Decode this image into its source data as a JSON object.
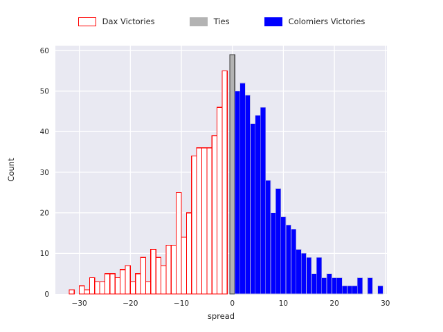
{
  "figure": {
    "background": "#ffffff",
    "plot_background": "#e9e9f2",
    "grid_color": "#ffffff",
    "text_color": "#262626"
  },
  "legend": {
    "items": [
      {
        "label": "Dax Victories",
        "swatch_fill": "#ffffff",
        "swatch_border": "#ff0000"
      },
      {
        "label": "Ties",
        "swatch_fill": "#b3b3b3",
        "swatch_border": "#b3b3b3"
      },
      {
        "label": "Colomiers Victories",
        "swatch_fill": "#0000ff",
        "swatch_border": "#0000ff"
      }
    ]
  },
  "chart_data": {
    "type": "bar",
    "subtype": "histogram",
    "title": "",
    "xlabel": "spread",
    "ylabel": "Count",
    "xlim": [
      -34.7,
      30.3
    ],
    "ylim": [
      0,
      61.2
    ],
    "x_ticks": [
      -30,
      -20,
      -10,
      0,
      10,
      20,
      30
    ],
    "y_ticks": [
      0,
      10,
      20,
      30,
      40,
      50,
      60
    ],
    "grid": true,
    "legend_position": "top",
    "bin_width": 1,
    "series": [
      {
        "name": "Dax Victories",
        "style": "outline",
        "edge_color": "#ff0000",
        "fill_color": "#ffffff",
        "bin_centers": [
          -31.5,
          -30.5,
          -29.5,
          -28.5,
          -27.5,
          -26.5,
          -25.5,
          -24.5,
          -23.5,
          -22.5,
          -21.5,
          -20.5,
          -19.5,
          -18.5,
          -17.5,
          -16.5,
          -15.5,
          -14.5,
          -13.5,
          -12.5,
          -11.5,
          -10.5,
          -9.5,
          -8.5,
          -7.5,
          -6.5,
          -5.5,
          -4.5,
          -3.5,
          -2.5,
          -1.5
        ],
        "counts": [
          1,
          0,
          2,
          1,
          4,
          3,
          3,
          5,
          5,
          4,
          6,
          7,
          3,
          5,
          9,
          3,
          11,
          9,
          7,
          12,
          12,
          25,
          14,
          20,
          34,
          36,
          36,
          36,
          39,
          46,
          55
        ]
      },
      {
        "name": "Ties",
        "style": "filled",
        "edge_color": "#3a3a3a",
        "fill_color": "#b3b3b3",
        "bin_centers": [
          0
        ],
        "counts": [
          59
        ]
      },
      {
        "name": "Colomiers Victories",
        "style": "filled",
        "edge_color": "#b9b9dc",
        "fill_color": "#0000ff",
        "bin_centers": [
          1,
          2,
          3,
          4,
          5,
          6,
          7,
          8,
          9,
          10,
          11,
          12,
          13,
          14,
          15,
          16,
          17,
          18,
          19,
          20,
          21,
          22,
          23,
          24,
          25,
          26,
          27,
          28,
          29
        ],
        "counts": [
          50,
          52,
          49,
          42,
          44,
          46,
          28,
          20,
          26,
          19,
          17,
          16,
          11,
          10,
          9,
          5,
          9,
          4,
          5,
          4,
          4,
          2,
          2,
          2,
          4,
          0,
          4,
          0,
          2
        ]
      }
    ]
  }
}
